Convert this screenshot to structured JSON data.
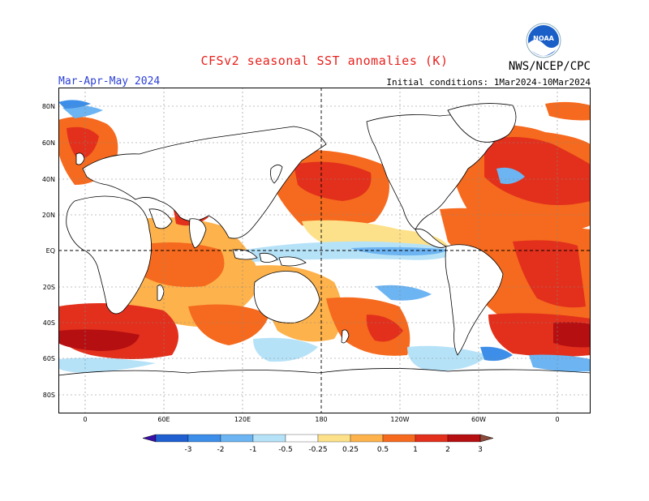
{
  "header": {
    "title": "CFSv2 seasonal SST anomalies (K)",
    "season": "Mar-Apr-May 2024",
    "initial_conditions": "Initial conditions: 1Mar2024-10Mar2024",
    "org": "NWS/NCEP/CPC",
    "logo_text": "NOAA"
  },
  "map": {
    "lat_labels": [
      "80N",
      "60N",
      "40N",
      "20N",
      "EQ",
      "20S",
      "40S",
      "60S",
      "80S"
    ],
    "lon_labels": [
      "0",
      "60E",
      "120E",
      "180",
      "120W",
      "60W",
      "0"
    ]
  },
  "legend": {
    "labels": [
      "-3",
      "-2",
      "-1",
      "-0.5",
      "-0.25",
      "0.25",
      "0.5",
      "1",
      "2",
      "3"
    ],
    "colors": [
      "#3a10a8",
      "#1f5fd0",
      "#3d8ee8",
      "#6cb4f2",
      "#b6e2f8",
      "#ffffff",
      "#fde18a",
      "#fdb24c",
      "#f56a1e",
      "#e2301c",
      "#b50f12",
      "#8a4b3c"
    ]
  }
}
